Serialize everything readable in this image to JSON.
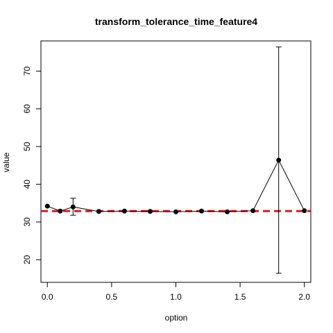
{
  "chart_data": {
    "type": "line",
    "title": "transform_tolerance_time_feature4",
    "xlabel": "option",
    "ylabel": "value",
    "xlim": [
      -0.05,
      2.05
    ],
    "ylim": [
      14,
      78
    ],
    "x_ticks": [
      0.0,
      0.5,
      1.0,
      1.5,
      2.0
    ],
    "x_tick_labels": [
      "0.0",
      "0.5",
      "1.0",
      "1.5",
      "2.0"
    ],
    "y_ticks": [
      20,
      30,
      40,
      50,
      60,
      70
    ],
    "y_tick_labels": [
      "20",
      "30",
      "40",
      "50",
      "60",
      "70"
    ],
    "grid": false,
    "series": [
      {
        "x": [
          0.0,
          0.1,
          0.2,
          0.4,
          0.6,
          0.8,
          1.0,
          1.2,
          1.4,
          1.6,
          1.8,
          2.0
        ],
        "values": [
          34.2,
          32.9,
          34.0,
          32.8,
          32.9,
          32.8,
          32.7,
          32.9,
          32.7,
          33.0,
          46.4,
          33.0
        ],
        "err_low": [
          null,
          null,
          31.8,
          null,
          null,
          null,
          null,
          null,
          null,
          null,
          16.4,
          null
        ],
        "err_high": [
          null,
          null,
          36.3,
          null,
          null,
          null,
          null,
          null,
          null,
          null,
          76.4,
          null
        ],
        "color": "#000000"
      }
    ],
    "reference_line": {
      "y": 32.9,
      "color": "#e8161b",
      "style": "dashed"
    }
  }
}
